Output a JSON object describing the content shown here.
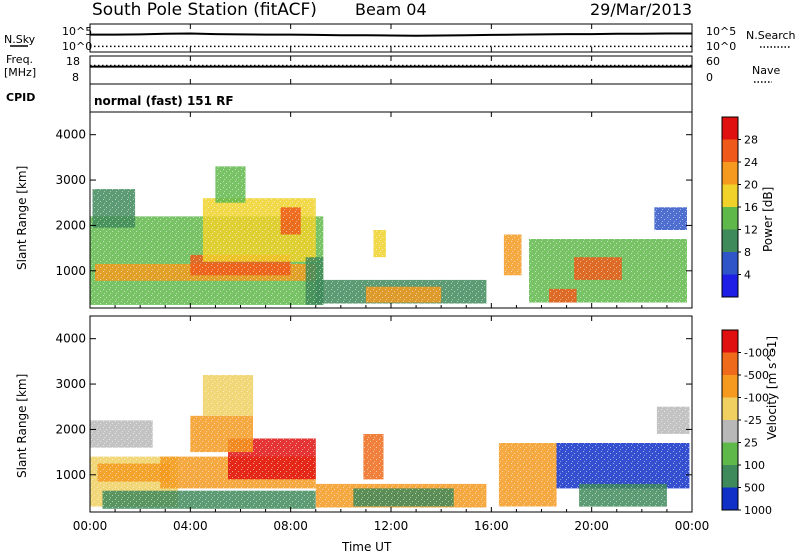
{
  "header": {
    "station": "South Pole Station (fitACF)",
    "beam": "Beam 04",
    "date": "29/Mar/2013"
  },
  "panel_labels": {
    "nsky": "N.Sky",
    "freq_line1": "Freq.",
    "freq_line2": "[MHz]",
    "cpid": "CPID",
    "nsearch": "N.Search",
    "nave": "Nave",
    "cpid_value": "normal (fast) 151 RF"
  },
  "chart_data": [
    {
      "type": "line",
      "name": "noise",
      "ylabel_left": "N.Sky",
      "ylabel_right": "N.Search",
      "left_ticks": [
        "10^5",
        "10^0"
      ],
      "right_ticks": [
        "10^5",
        "10^0"
      ],
      "xlim": [
        0,
        24
      ],
      "series": [
        {
          "name": "N.Sky",
          "style": "solid",
          "x": [
            0,
            1,
            2,
            3,
            4,
            5,
            6,
            7,
            8,
            9,
            10,
            11,
            12,
            13,
            14,
            15,
            16,
            17,
            18,
            19,
            20,
            21,
            22,
            23,
            24
          ],
          "level": [
            0.62,
            0.62,
            0.63,
            0.65,
            0.66,
            0.64,
            0.63,
            0.62,
            0.62,
            0.61,
            0.6,
            0.6,
            0.59,
            0.58,
            0.59,
            0.6,
            0.61,
            0.62,
            0.63,
            0.64,
            0.64,
            0.65,
            0.65,
            0.66,
            0.66
          ]
        },
        {
          "name": "N.Search",
          "style": "dotted",
          "x": [
            0,
            24
          ],
          "level": [
            0.2,
            0.2
          ]
        }
      ]
    },
    {
      "type": "line",
      "name": "frequency",
      "ylabel_left": "Freq. [MHz]",
      "ylabel_right": "Nave",
      "left_ticks": [
        "18",
        "8"
      ],
      "right_ticks": [
        "60",
        "0"
      ],
      "xlim": [
        0,
        24
      ],
      "series": [
        {
          "name": "Freq.",
          "style": "solid",
          "x": [
            0,
            24
          ],
          "level": [
            0.62,
            0.62
          ]
        },
        {
          "name": "Nave",
          "style": "dotted",
          "x": [
            0,
            24
          ],
          "level": [
            0.66,
            0.66
          ]
        }
      ]
    },
    {
      "type": "heatmap",
      "name": "power",
      "xlabel": "",
      "ylabel": "Slant Range [km]",
      "xlim": [
        0,
        24
      ],
      "ylim": [
        180,
        4500
      ],
      "yticks": [
        1000,
        2000,
        3000,
        4000
      ],
      "colorbar": {
        "label": "Power [dB]",
        "tick_labels": [
          "4",
          "8",
          "12",
          "16",
          "20",
          "24",
          "28"
        ],
        "range": [
          0,
          30
        ],
        "colors": [
          "#1e1ee6",
          "#2f55c8",
          "#3f8a5a",
          "#5fb84a",
          "#f0d22a",
          "#f59a1f",
          "#ef5a1a",
          "#e01010"
        ]
      },
      "regions": [
        {
          "t0": 0.0,
          "t1": 9.3,
          "r0": 250,
          "r1": 2200,
          "v": 13
        },
        {
          "t0": 0.1,
          "t1": 1.8,
          "r0": 1950,
          "r1": 2800,
          "v": 9
        },
        {
          "t0": 0.2,
          "t1": 9.0,
          "r0": 780,
          "r1": 1150,
          "v": 22
        },
        {
          "t0": 4.0,
          "t1": 8.0,
          "r0": 900,
          "r1": 1350,
          "v": 24
        },
        {
          "t0": 4.5,
          "t1": 9.0,
          "r0": 1200,
          "r1": 2600,
          "v": 17
        },
        {
          "t0": 5.0,
          "t1": 6.2,
          "r0": 2500,
          "r1": 3300,
          "v": 12
        },
        {
          "t0": 7.6,
          "t1": 8.4,
          "r0": 1800,
          "r1": 2400,
          "v": 24
        },
        {
          "t0": 8.6,
          "t1": 9.3,
          "r0": 250,
          "r1": 1300,
          "v": 10
        },
        {
          "t0": 9.0,
          "t1": 15.8,
          "r0": 280,
          "r1": 800,
          "v": 11
        },
        {
          "t0": 11.0,
          "t1": 14.0,
          "r0": 300,
          "r1": 650,
          "v": 22
        },
        {
          "t0": 11.3,
          "t1": 11.8,
          "r0": 1300,
          "r1": 1900,
          "v": 16
        },
        {
          "t0": 16.5,
          "t1": 17.2,
          "r0": 900,
          "r1": 1800,
          "v": 20
        },
        {
          "t0": 17.5,
          "t1": 23.8,
          "r0": 300,
          "r1": 1700,
          "v": 13
        },
        {
          "t0": 18.3,
          "t1": 19.4,
          "r0": 300,
          "r1": 600,
          "v": 26
        },
        {
          "t0": 19.3,
          "t1": 21.2,
          "r0": 800,
          "r1": 1300,
          "v": 23
        },
        {
          "t0": 22.5,
          "t1": 23.8,
          "r0": 1900,
          "r1": 2400,
          "v": 7
        }
      ]
    },
    {
      "type": "heatmap",
      "name": "velocity",
      "xlabel": "Time UT",
      "ylabel": "Slant Range [km]",
      "xlim": [
        0,
        24
      ],
      "ylim": [
        180,
        4500
      ],
      "xtick_labels": [
        "00:00",
        "04:00",
        "08:00",
        "12:00",
        "16:00",
        "20:00",
        "00:00"
      ],
      "yticks": [
        1000,
        2000,
        3000,
        4000
      ],
      "colorbar": {
        "label": "Velocity [m s^-1]",
        "tick_labels": [
          "1000",
          "500",
          "100",
          "25",
          "-25",
          "-100",
          "-500",
          "-1000"
        ],
        "colors": [
          "#1030c8",
          "#3f8a5a",
          "#5fb84a",
          "#b8b8b8",
          "#f0d060",
          "#f59a1f",
          "#ef6a1a",
          "#e01010"
        ]
      },
      "regions": [
        {
          "t0": 0.0,
          "t1": 3.5,
          "r0": 300,
          "r1": 1400,
          "v": 4
        },
        {
          "t0": 0.0,
          "t1": 2.5,
          "r0": 1600,
          "r1": 2200,
          "v": 3
        },
        {
          "t0": 0.3,
          "t1": 3.2,
          "r0": 850,
          "r1": 1250,
          "v": 5
        },
        {
          "t0": 2.8,
          "t1": 9.0,
          "r0": 700,
          "r1": 1400,
          "v": 5
        },
        {
          "t0": 5.5,
          "t1": 9.0,
          "r0": 900,
          "r1": 1800,
          "v": 7
        },
        {
          "t0": 4.0,
          "t1": 6.5,
          "r0": 1500,
          "r1": 2300,
          "v": 5
        },
        {
          "t0": 4.5,
          "t1": 6.5,
          "r0": 2300,
          "r1": 3200,
          "v": 4
        },
        {
          "t0": 0.5,
          "t1": 9.0,
          "r0": 250,
          "r1": 650,
          "v": 1
        },
        {
          "t0": 10.9,
          "t1": 11.7,
          "r0": 900,
          "r1": 1900,
          "v": 6
        },
        {
          "t0": 9.0,
          "t1": 15.8,
          "r0": 280,
          "r1": 800,
          "v": 5
        },
        {
          "t0": 10.5,
          "t1": 14.5,
          "r0": 300,
          "r1": 700,
          "v": 1
        },
        {
          "t0": 16.3,
          "t1": 18.6,
          "r0": 300,
          "r1": 1700,
          "v": 5
        },
        {
          "t0": 18.6,
          "t1": 23.9,
          "r0": 700,
          "r1": 1700,
          "v": 0
        },
        {
          "t0": 19.5,
          "t1": 23.0,
          "r0": 300,
          "r1": 800,
          "v": 1
        },
        {
          "t0": 22.6,
          "t1": 23.9,
          "r0": 1900,
          "r1": 2500,
          "v": 3
        }
      ]
    }
  ]
}
